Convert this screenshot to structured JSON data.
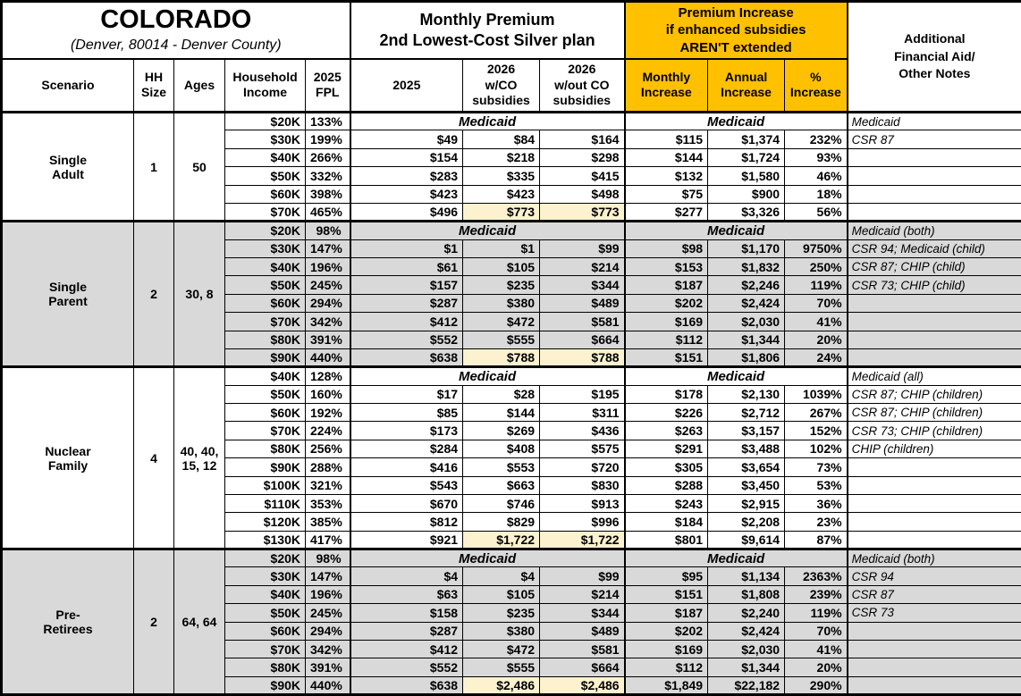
{
  "header": {
    "state": {
      "title": "COLORADO",
      "subtitle": "(Denver, 80014 - Denver County)"
    },
    "premium_group": "Monthly Premium\n2nd Lowest-Cost Silver plan",
    "increase_group": "Premium Increase\nif enhanced subsidies\nAREN'T extended",
    "notes_group": "Additional\nFinancial Aid/\nOther Notes",
    "columns": {
      "scenario": "Scenario",
      "hh_size": "HH\nSize",
      "ages": "Ages",
      "income": "Household\nIncome",
      "fpl": "2025\nFPL",
      "p2025": "2025",
      "p2026_with": "2026\nw/CO\nsubsidies",
      "p2026_without": "2026\nw/out CO\nsubsidies",
      "monthly": "Monthly\nIncrease",
      "annual": "Annual\nIncrease",
      "pct": "%\nIncrease"
    }
  },
  "labels": {
    "medicaid": "Medicaid"
  },
  "colors": {
    "accent_orange": "#FFC000",
    "shaded_row_gray": "#D9D9D9",
    "highlight_cream": "#FCF2CF"
  },
  "chart_data": {
    "type": "table",
    "title": "COLORADO (Denver, 80014 - Denver County)",
    "column_groups": [
      "Monthly Premium 2nd Lowest-Cost Silver plan",
      "Premium Increase if enhanced subsidies AREN'T extended"
    ],
    "columns": [
      "Scenario",
      "HH Size",
      "Ages",
      "Household Income",
      "2025 FPL",
      "2025",
      "2026 w/CO subsidies",
      "2026 w/out CO subsidies",
      "Monthly Increase",
      "Annual Increase",
      "% Increase",
      "Additional Financial Aid/Other Notes"
    ],
    "sections": [
      {
        "id": "single-adult",
        "scenario": "Single\nAdult",
        "hh_size": "1",
        "ages": "50",
        "shaded": false,
        "rows": [
          {
            "income": "$20K",
            "fpl": "133%",
            "medicaid": true,
            "note": "Medicaid"
          },
          {
            "income": "$30K",
            "fpl": "199%",
            "p2025": "$49",
            "with_co": "$84",
            "without_co": "$164",
            "monthly": "$115",
            "annual": "$1,374",
            "pct": "232%",
            "note": "CSR 87"
          },
          {
            "income": "$40K",
            "fpl": "266%",
            "p2025": "$154",
            "with_co": "$218",
            "without_co": "$298",
            "monthly": "$144",
            "annual": "$1,724",
            "pct": "93%",
            "note": ""
          },
          {
            "income": "$50K",
            "fpl": "332%",
            "p2025": "$283",
            "with_co": "$335",
            "without_co": "$415",
            "monthly": "$132",
            "annual": "$1,580",
            "pct": "46%",
            "note": ""
          },
          {
            "income": "$60K",
            "fpl": "398%",
            "p2025": "$423",
            "with_co": "$423",
            "without_co": "$498",
            "monthly": "$75",
            "annual": "$900",
            "pct": "18%",
            "note": ""
          },
          {
            "income": "$70K",
            "fpl": "465%",
            "p2025": "$496",
            "with_co": "$773",
            "without_co": "$773",
            "monthly": "$277",
            "annual": "$3,326",
            "pct": "56%",
            "note": "",
            "highlight": true
          }
        ]
      },
      {
        "id": "single-parent",
        "scenario": "Single\nParent",
        "hh_size": "2",
        "ages": "30, 8",
        "shaded": true,
        "rows": [
          {
            "income": "$20K",
            "fpl": "98%",
            "medicaid": true,
            "note": "Medicaid (both)"
          },
          {
            "income": "$30K",
            "fpl": "147%",
            "p2025": "$1",
            "with_co": "$1",
            "without_co": "$99",
            "monthly": "$98",
            "annual": "$1,170",
            "pct": "9750%",
            "note": "CSR 94; Medicaid (child)"
          },
          {
            "income": "$40K",
            "fpl": "196%",
            "p2025": "$61",
            "with_co": "$105",
            "without_co": "$214",
            "monthly": "$153",
            "annual": "$1,832",
            "pct": "250%",
            "note": "CSR 87; CHIP (child)"
          },
          {
            "income": "$50K",
            "fpl": "245%",
            "p2025": "$157",
            "with_co": "$235",
            "without_co": "$344",
            "monthly": "$187",
            "annual": "$2,246",
            "pct": "119%",
            "note": "CSR 73; CHIP (child)"
          },
          {
            "income": "$60K",
            "fpl": "294%",
            "p2025": "$287",
            "with_co": "$380",
            "without_co": "$489",
            "monthly": "$202",
            "annual": "$2,424",
            "pct": "70%",
            "note": ""
          },
          {
            "income": "$70K",
            "fpl": "342%",
            "p2025": "$412",
            "with_co": "$472",
            "without_co": "$581",
            "monthly": "$169",
            "annual": "$2,030",
            "pct": "41%",
            "note": ""
          },
          {
            "income": "$80K",
            "fpl": "391%",
            "p2025": "$552",
            "with_co": "$555",
            "without_co": "$664",
            "monthly": "$112",
            "annual": "$1,344",
            "pct": "20%",
            "note": ""
          },
          {
            "income": "$90K",
            "fpl": "440%",
            "p2025": "$638",
            "with_co": "$788",
            "without_co": "$788",
            "monthly": "$151",
            "annual": "$1,806",
            "pct": "24%",
            "note": "",
            "highlight": true
          }
        ]
      },
      {
        "id": "nuclear-family",
        "scenario": "Nuclear\nFamily",
        "hh_size": "4",
        "ages": "40, 40,\n15, 12",
        "shaded": false,
        "rows": [
          {
            "income": "$40K",
            "fpl": "128%",
            "medicaid": true,
            "note": "Medicaid (all)"
          },
          {
            "income": "$50K",
            "fpl": "160%",
            "p2025": "$17",
            "with_co": "$28",
            "without_co": "$195",
            "monthly": "$178",
            "annual": "$2,130",
            "pct": "1039%",
            "note": "CSR 87; CHIP (children)"
          },
          {
            "income": "$60K",
            "fpl": "192%",
            "p2025": "$85",
            "with_co": "$144",
            "without_co": "$311",
            "monthly": "$226",
            "annual": "$2,712",
            "pct": "267%",
            "note": "CSR 87; CHIP (children)"
          },
          {
            "income": "$70K",
            "fpl": "224%",
            "p2025": "$173",
            "with_co": "$269",
            "without_co": "$436",
            "monthly": "$263",
            "annual": "$3,157",
            "pct": "152%",
            "note": "CSR 73; CHIP (children)"
          },
          {
            "income": "$80K",
            "fpl": "256%",
            "p2025": "$284",
            "with_co": "$408",
            "without_co": "$575",
            "monthly": "$291",
            "annual": "$3,488",
            "pct": "102%",
            "note": "CHIP (children)"
          },
          {
            "income": "$90K",
            "fpl": "288%",
            "p2025": "$416",
            "with_co": "$553",
            "without_co": "$720",
            "monthly": "$305",
            "annual": "$3,654",
            "pct": "73%",
            "note": ""
          },
          {
            "income": "$100K",
            "fpl": "321%",
            "p2025": "$543",
            "with_co": "$663",
            "without_co": "$830",
            "monthly": "$288",
            "annual": "$3,450",
            "pct": "53%",
            "note": ""
          },
          {
            "income": "$110K",
            "fpl": "353%",
            "p2025": "$670",
            "with_co": "$746",
            "without_co": "$913",
            "monthly": "$243",
            "annual": "$2,915",
            "pct": "36%",
            "note": ""
          },
          {
            "income": "$120K",
            "fpl": "385%",
            "p2025": "$812",
            "with_co": "$829",
            "without_co": "$996",
            "monthly": "$184",
            "annual": "$2,208",
            "pct": "23%",
            "note": ""
          },
          {
            "income": "$130K",
            "fpl": "417%",
            "p2025": "$921",
            "with_co": "$1,722",
            "without_co": "$1,722",
            "monthly": "$801",
            "annual": "$9,614",
            "pct": "87%",
            "note": "",
            "highlight": true
          }
        ]
      },
      {
        "id": "pre-retirees",
        "scenario": "Pre-\nRetirees",
        "hh_size": "2",
        "ages": "64, 64",
        "shaded": true,
        "rows": [
          {
            "income": "$20K",
            "fpl": "98%",
            "medicaid": true,
            "note": "Medicaid (both)"
          },
          {
            "income": "$30K",
            "fpl": "147%",
            "p2025": "$4",
            "with_co": "$4",
            "without_co": "$99",
            "monthly": "$95",
            "annual": "$1,134",
            "pct": "2363%",
            "note": "CSR 94"
          },
          {
            "income": "$40K",
            "fpl": "196%",
            "p2025": "$63",
            "with_co": "$105",
            "without_co": "$214",
            "monthly": "$151",
            "annual": "$1,808",
            "pct": "239%",
            "note": "CSR 87"
          },
          {
            "income": "$50K",
            "fpl": "245%",
            "p2025": "$158",
            "with_co": "$235",
            "without_co": "$344",
            "monthly": "$187",
            "annual": "$2,240",
            "pct": "119%",
            "note": "CSR 73"
          },
          {
            "income": "$60K",
            "fpl": "294%",
            "p2025": "$287",
            "with_co": "$380",
            "without_co": "$489",
            "monthly": "$202",
            "annual": "$2,424",
            "pct": "70%",
            "note": ""
          },
          {
            "income": "$70K",
            "fpl": "342%",
            "p2025": "$412",
            "with_co": "$472",
            "without_co": "$581",
            "monthly": "$169",
            "annual": "$2,030",
            "pct": "41%",
            "note": ""
          },
          {
            "income": "$80K",
            "fpl": "391%",
            "p2025": "$552",
            "with_co": "$555",
            "without_co": "$664",
            "monthly": "$112",
            "annual": "$1,344",
            "pct": "20%",
            "note": ""
          },
          {
            "income": "$90K",
            "fpl": "440%",
            "p2025": "$638",
            "with_co": "$2,486",
            "without_co": "$2,486",
            "monthly": "$1,849",
            "annual": "$22,182",
            "pct": "290%",
            "note": "",
            "highlight": true
          }
        ]
      }
    ]
  }
}
